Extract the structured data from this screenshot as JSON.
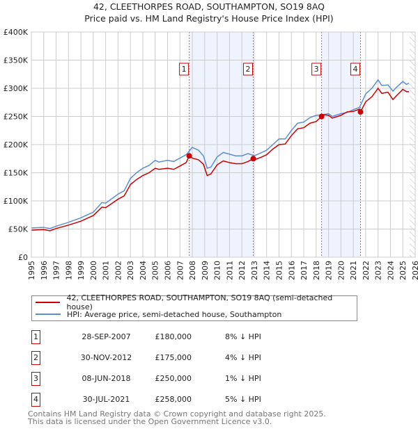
{
  "chart_data": {
    "type": "line",
    "title": "42, CLEETHORPES ROAD, SOUTHAMPTON, SO19 8AQ",
    "subtitle": "Price paid vs. HM Land Registry's House Price Index (HPI)",
    "xlim": [
      1995,
      2026
    ],
    "ylim": [
      0,
      400000
    ],
    "y_ticks": [
      {
        "v": 0,
        "label": "£0"
      },
      {
        "v": 50000,
        "label": "£50K"
      },
      {
        "v": 100000,
        "label": "£100K"
      },
      {
        "v": 150000,
        "label": "£150K"
      },
      {
        "v": 200000,
        "label": "£200K"
      },
      {
        "v": 250000,
        "label": "£250K"
      },
      {
        "v": 300000,
        "label": "£300K"
      },
      {
        "v": 350000,
        "label": "£350K"
      },
      {
        "v": 400000,
        "label": "£400K"
      }
    ],
    "x_ticks": [
      "1995",
      "1996",
      "1997",
      "1998",
      "1999",
      "2000",
      "2001",
      "2002",
      "2003",
      "2004",
      "2005",
      "2006",
      "2007",
      "2008",
      "2009",
      "2010",
      "2011",
      "2012",
      "2013",
      "2014",
      "2015",
      "2016",
      "2017",
      "2018",
      "2019",
      "2020",
      "2021",
      "2022",
      "2023",
      "2024",
      "2025",
      "2026"
    ],
    "grid": true,
    "series": [
      {
        "name": "42, CLEETHORPES ROAD, SOUTHAMPTON, SO19 8AQ (semi-detached house)",
        "color": "#cc0000",
        "points": [
          [
            1995,
            48
          ],
          [
            1996,
            49
          ],
          [
            1996.5,
            47
          ],
          [
            1997,
            51
          ],
          [
            1998,
            57
          ],
          [
            1999,
            64
          ],
          [
            2000,
            74
          ],
          [
            2000.7,
            89
          ],
          [
            2001,
            88
          ],
          [
            2002,
            103
          ],
          [
            2002.5,
            109
          ],
          [
            2003,
            129
          ],
          [
            2003.5,
            138
          ],
          [
            2004,
            145
          ],
          [
            2004.5,
            150
          ],
          [
            2005,
            158
          ],
          [
            2005.3,
            156
          ],
          [
            2006,
            158
          ],
          [
            2006.5,
            156
          ],
          [
            2007,
            162
          ],
          [
            2007.5,
            168
          ],
          [
            2007.75,
            180
          ],
          [
            2008,
            176
          ],
          [
            2008.5,
            173
          ],
          [
            2008.9,
            165
          ],
          [
            2009.2,
            145
          ],
          [
            2009.5,
            148
          ],
          [
            2010,
            164
          ],
          [
            2010.5,
            171
          ],
          [
            2011,
            168
          ],
          [
            2011.5,
            166
          ],
          [
            2012,
            166
          ],
          [
            2012.5,
            170
          ],
          [
            2012.92,
            175
          ],
          [
            2013,
            173
          ],
          [
            2013.5,
            177
          ],
          [
            2014,
            182
          ],
          [
            2014.5,
            192
          ],
          [
            2015,
            200
          ],
          [
            2015.5,
            201
          ],
          [
            2016,
            216
          ],
          [
            2016.5,
            228
          ],
          [
            2017,
            230
          ],
          [
            2017.5,
            238
          ],
          [
            2018,
            241
          ],
          [
            2018.44,
            250
          ],
          [
            2018.6,
            253
          ],
          [
            2019,
            252
          ],
          [
            2019.3,
            247
          ],
          [
            2020,
            252
          ],
          [
            2020.5,
            258
          ],
          [
            2021,
            259
          ],
          [
            2021.5,
            263
          ],
          [
            2021.58,
            258
          ],
          [
            2022,
            276
          ],
          [
            2022.5,
            285
          ],
          [
            2023,
            300
          ],
          [
            2023.3,
            291
          ],
          [
            2023.8,
            293
          ],
          [
            2024.2,
            280
          ],
          [
            2024.5,
            287
          ],
          [
            2025,
            298
          ],
          [
            2025.3,
            294
          ],
          [
            2025.5,
            294
          ]
        ]
      },
      {
        "name": "HPI: Average price, semi-detached house, Southampton",
        "color": "#5b8fd4",
        "points": [
          [
            1995,
            52
          ],
          [
            1996,
            53
          ],
          [
            1996.5,
            51
          ],
          [
            1997,
            55
          ],
          [
            1998,
            62
          ],
          [
            1999,
            70
          ],
          [
            2000,
            80
          ],
          [
            2000.7,
            97
          ],
          [
            2001,
            96
          ],
          [
            2002,
            112
          ],
          [
            2002.5,
            118
          ],
          [
            2003,
            140
          ],
          [
            2003.5,
            150
          ],
          [
            2004,
            158
          ],
          [
            2004.5,
            163
          ],
          [
            2005,
            172
          ],
          [
            2005.3,
            169
          ],
          [
            2006,
            172
          ],
          [
            2006.5,
            170
          ],
          [
            2007,
            176
          ],
          [
            2007.5,
            182
          ],
          [
            2008,
            195
          ],
          [
            2008.5,
            190
          ],
          [
            2008.9,
            180
          ],
          [
            2009.2,
            158
          ],
          [
            2009.5,
            160
          ],
          [
            2010,
            178
          ],
          [
            2010.5,
            186
          ],
          [
            2011,
            183
          ],
          [
            2011.5,
            180
          ],
          [
            2012,
            180
          ],
          [
            2012.5,
            184
          ],
          [
            2013,
            180
          ],
          [
            2013.5,
            185
          ],
          [
            2014,
            190
          ],
          [
            2014.5,
            200
          ],
          [
            2015,
            210
          ],
          [
            2015.5,
            210
          ],
          [
            2016,
            225
          ],
          [
            2016.5,
            238
          ],
          [
            2017,
            240
          ],
          [
            2017.5,
            248
          ],
          [
            2018,
            252
          ],
          [
            2018.5,
            253
          ],
          [
            2019,
            255
          ],
          [
            2019.3,
            250
          ],
          [
            2020,
            255
          ],
          [
            2020.5,
            257
          ],
          [
            2021,
            262
          ],
          [
            2021.5,
            266
          ],
          [
            2022,
            290
          ],
          [
            2022.5,
            300
          ],
          [
            2023,
            315
          ],
          [
            2023.3,
            305
          ],
          [
            2023.8,
            306
          ],
          [
            2024.2,
            295
          ],
          [
            2024.5,
            302
          ],
          [
            2025,
            312
          ],
          [
            2025.3,
            307
          ],
          [
            2025.5,
            309
          ]
        ]
      }
    ],
    "units": "thousands GBP",
    "sales": [
      {
        "n": "1",
        "x": 2007.75,
        "value": 180000,
        "date": "28-SEP-2007",
        "price": "£180,000",
        "hpi": "8% ↓ HPI"
      },
      {
        "n": "2",
        "x": 2012.92,
        "value": 175000,
        "date": "30-NOV-2012",
        "price": "£175,000",
        "hpi": "4% ↓ HPI"
      },
      {
        "n": "3",
        "x": 2018.44,
        "value": 250000,
        "date": "08-JUN-2018",
        "price": "£250,000",
        "hpi": "1% ↓ HPI"
      },
      {
        "n": "4",
        "x": 2021.58,
        "value": 258000,
        "date": "30-JUL-2021",
        "price": "£258,000",
        "hpi": "5% ↓ HPI"
      }
    ],
    "shaded_ranges": [
      [
        2007.75,
        2012.92
      ],
      [
        2018.44,
        2021.58
      ]
    ],
    "forecast_hatch_from": 2025.55,
    "legend_placement": "below"
  },
  "legend": {
    "items": [
      {
        "label": "42, CLEETHORPES ROAD, SOUTHAMPTON, SO19 8AQ (semi-detached house)"
      },
      {
        "label": "HPI: Average price, semi-detached house, Southampton"
      }
    ]
  },
  "footer": {
    "line1": "Contains HM Land Registry data © Crown copyright and database right 2025.",
    "line2": "This data is licensed under the Open Government Licence v3.0."
  }
}
